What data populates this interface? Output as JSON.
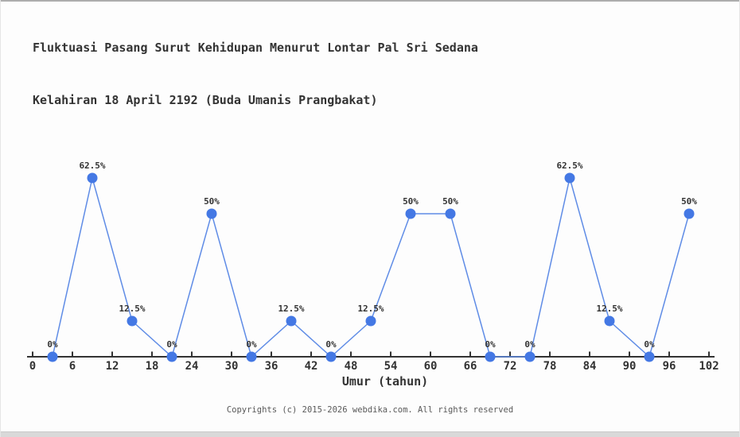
{
  "page": {
    "background": "#fdfdfd",
    "top_strip_color": "#adadad",
    "bottom_strip_color": "#d9d9d9"
  },
  "header": {
    "title_line1": "Fluktuasi Pasang Surut Kehidupan Menurut Lontar Pal Sri Sedana",
    "title_line2": "Kelahiran 18 April 2192 (Buda Umanis Prangbakat)"
  },
  "footer": {
    "copyright": "Copyrights (c) 2015-2026 webdika.com. All rights reserved"
  },
  "chart_data": {
    "type": "line",
    "title": "Fluktuasi Pasang Surut Kehidupan Menurut Lontar Pal Sri Sedana Kelahiran 18 April 2192 (Buda Umanis Prangbakat)",
    "xlabel": "Umur (tahun)",
    "ylabel": "",
    "x": [
      3,
      9,
      15,
      21,
      27,
      33,
      39,
      45,
      51,
      57,
      63,
      69,
      75,
      81,
      87,
      93,
      99
    ],
    "values": [
      0,
      62.5,
      12.5,
      0,
      50,
      0,
      12.5,
      0,
      12.5,
      50,
      50,
      0,
      0,
      62.5,
      12.5,
      0,
      50
    ],
    "point_labels": [
      "0%",
      "62.5%",
      "12.5%",
      "0%",
      "50%",
      "0%",
      "12.5%",
      "0%",
      "12.5%",
      "50%",
      "50%",
      "0%",
      "0%",
      "62.5%",
      "12.5%",
      "0%",
      "50%"
    ],
    "x_ticks": [
      0,
      6,
      12,
      18,
      24,
      30,
      36,
      42,
      48,
      54,
      60,
      66,
      72,
      78,
      84,
      90,
      96,
      102
    ],
    "xlim": [
      0,
      102
    ],
    "ylim": [
      0,
      70
    ],
    "grid": false,
    "legend_position": "none",
    "colors": {
      "line": "#5f8ce6",
      "marker": "#4478e4",
      "axis": "#333333",
      "label_text": "#333333",
      "footer_text": "#595959"
    }
  }
}
